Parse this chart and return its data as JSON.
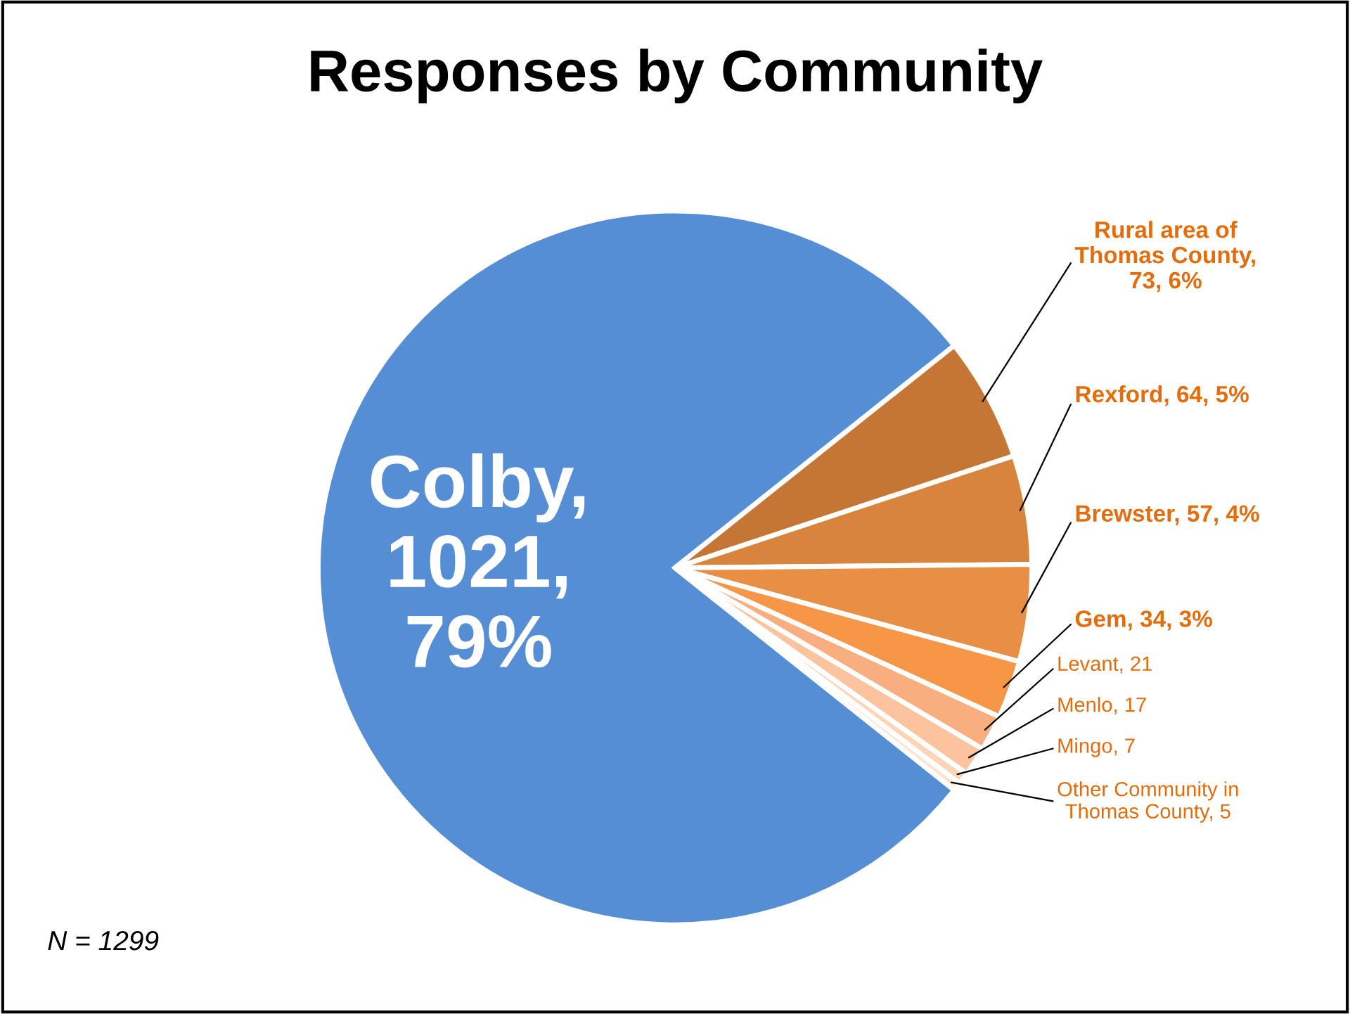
{
  "chart_data": {
    "type": "pie",
    "title": "Responses by Community",
    "categories": [
      "Colby, 1021, 79%",
      "Rural area of Thomas County, 73, 6%",
      "Rexford, 64, 5%",
      "Brewster, 57, 4%",
      "Gem, 34, 3%",
      "Levant, 21",
      "Menlo, 17",
      "Mingo, 7",
      "Other Community in Thomas County, 5"
    ],
    "values": [
      1021,
      73,
      64,
      57,
      34,
      21,
      17,
      7,
      5
    ],
    "colors": [
      "#558ed5",
      "#c57634",
      "#d9843c",
      "#e98f45",
      "#f79646",
      "#f9ae7f",
      "#fbc49f",
      "#fcd5b6",
      "#fde4d2"
    ],
    "annotations": [
      "N = 1299"
    ]
  }
}
